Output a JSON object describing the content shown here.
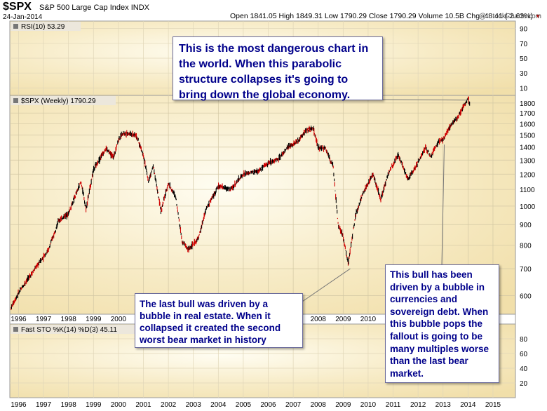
{
  "header": {
    "symbol": "$SPX",
    "name": "S&P 500 Large Cap Index",
    "exchange": "INDX",
    "date": "24-Jan-2014",
    "stats": "Open 1841.05  High 1849.31  Low 1790.29  Close 1790.29  Volume 10.5B  Chg -48.41 (-2.63%)",
    "watermark": "@ StockCharts.com"
  },
  "colors": {
    "panel_bg": "#f5e6bd",
    "panel_glow": "#fffdf2",
    "label_bar": "#ece7dc",
    "candle_up": "#000000",
    "candle_down": "#d00000",
    "callout_text": "#00008b"
  },
  "chart_data": {
    "type": "ohlc",
    "series_name": "$SPX (Weekly)",
    "last_value_label": "1790.29",
    "y_scale": "log",
    "ylim": [
      540,
      1880
    ],
    "yticks": [
      "1800",
      "1700",
      "1600",
      "1500",
      "1400",
      "1300",
      "1200",
      "1100",
      "1000",
      "900",
      "800",
      "700",
      "600"
    ],
    "xlim": [
      1995.65,
      2015.9
    ],
    "xticks": [
      "1996",
      "1997",
      "1998",
      "1999",
      "2000",
      "2001",
      "2002",
      "2003",
      "2004",
      "2005",
      "2006",
      "2007",
      "2008",
      "2009",
      "2010",
      "2011",
      "2012",
      "2013",
      "2014",
      "2015"
    ],
    "xticks_visible_main": [
      "1996",
      "1997",
      "1998",
      "1999",
      "2000",
      "2008",
      "2009",
      "2010",
      "2011"
    ],
    "grid": true,
    "price_path": [
      [
        1995.7,
        560
      ],
      [
        1996.0,
        610
      ],
      [
        1996.4,
        665
      ],
      [
        1996.8,
        720
      ],
      [
        1997.2,
        780
      ],
      [
        1997.6,
        920
      ],
      [
        1998.0,
        960
      ],
      [
        1998.5,
        1150
      ],
      [
        1998.7,
        985
      ],
      [
        1999.0,
        1230
      ],
      [
        1999.5,
        1390
      ],
      [
        1999.8,
        1320
      ],
      [
        2000.0,
        1460
      ],
      [
        2000.2,
        1520
      ],
      [
        2000.7,
        1500
      ],
      [
        2001.0,
        1340
      ],
      [
        2001.2,
        1150
      ],
      [
        2001.4,
        1260
      ],
      [
        2001.7,
        970
      ],
      [
        2002.0,
        1140
      ],
      [
        2002.3,
        1050
      ],
      [
        2002.55,
        820
      ],
      [
        2002.8,
        780
      ],
      [
        2003.2,
        830
      ],
      [
        2003.5,
        980
      ],
      [
        2004.0,
        1120
      ],
      [
        2004.5,
        1100
      ],
      [
        2005.0,
        1200
      ],
      [
        2005.6,
        1220
      ],
      [
        2006.0,
        1280
      ],
      [
        2006.4,
        1310
      ],
      [
        2006.8,
        1400
      ],
      [
        2007.2,
        1450
      ],
      [
        2007.5,
        1540
      ],
      [
        2007.8,
        1560
      ],
      [
        2008.0,
        1390
      ],
      [
        2008.3,
        1390
      ],
      [
        2008.6,
        1250
      ],
      [
        2008.8,
        900
      ],
      [
        2009.0,
        840
      ],
      [
        2009.2,
        720
      ],
      [
        2009.5,
        950
      ],
      [
        2009.8,
        1080
      ],
      [
        2010.2,
        1200
      ],
      [
        2010.5,
        1040
      ],
      [
        2010.8,
        1200
      ],
      [
        2011.2,
        1340
      ],
      [
        2011.6,
        1170
      ],
      [
        2011.9,
        1250
      ],
      [
        2012.3,
        1400
      ],
      [
        2012.5,
        1320
      ],
      [
        2012.8,
        1440
      ],
      [
        2013.0,
        1460
      ],
      [
        2013.4,
        1620
      ],
      [
        2013.6,
        1660
      ],
      [
        2013.9,
        1800
      ],
      [
        2014.0,
        1845
      ],
      [
        2014.07,
        1790
      ]
    ],
    "rsi": {
      "label": "RSI(10) 53.29",
      "ylim": [
        0,
        100
      ],
      "yticks": [
        "90",
        "70",
        "50",
        "30",
        "10"
      ]
    },
    "stochastic": {
      "label": "Fast STO %K(14) %D(3) 45.11",
      "ylim": [
        0,
        100
      ],
      "yticks": [
        "80",
        "60",
        "40",
        "20"
      ]
    }
  },
  "annotations": {
    "top": "This is the most dangerous chart in the world. When this parabolic structure collapses it's going to bring down the global economy.",
    "left": "The last bull was driven by a bubble in real estate. When it collapsed it created the second worst bear market in history",
    "right": "This bull has been driven by a bubble in currencies and sovereign debt. When this bubble pops the fallout is going to be many multiples worse than the last bear market."
  }
}
